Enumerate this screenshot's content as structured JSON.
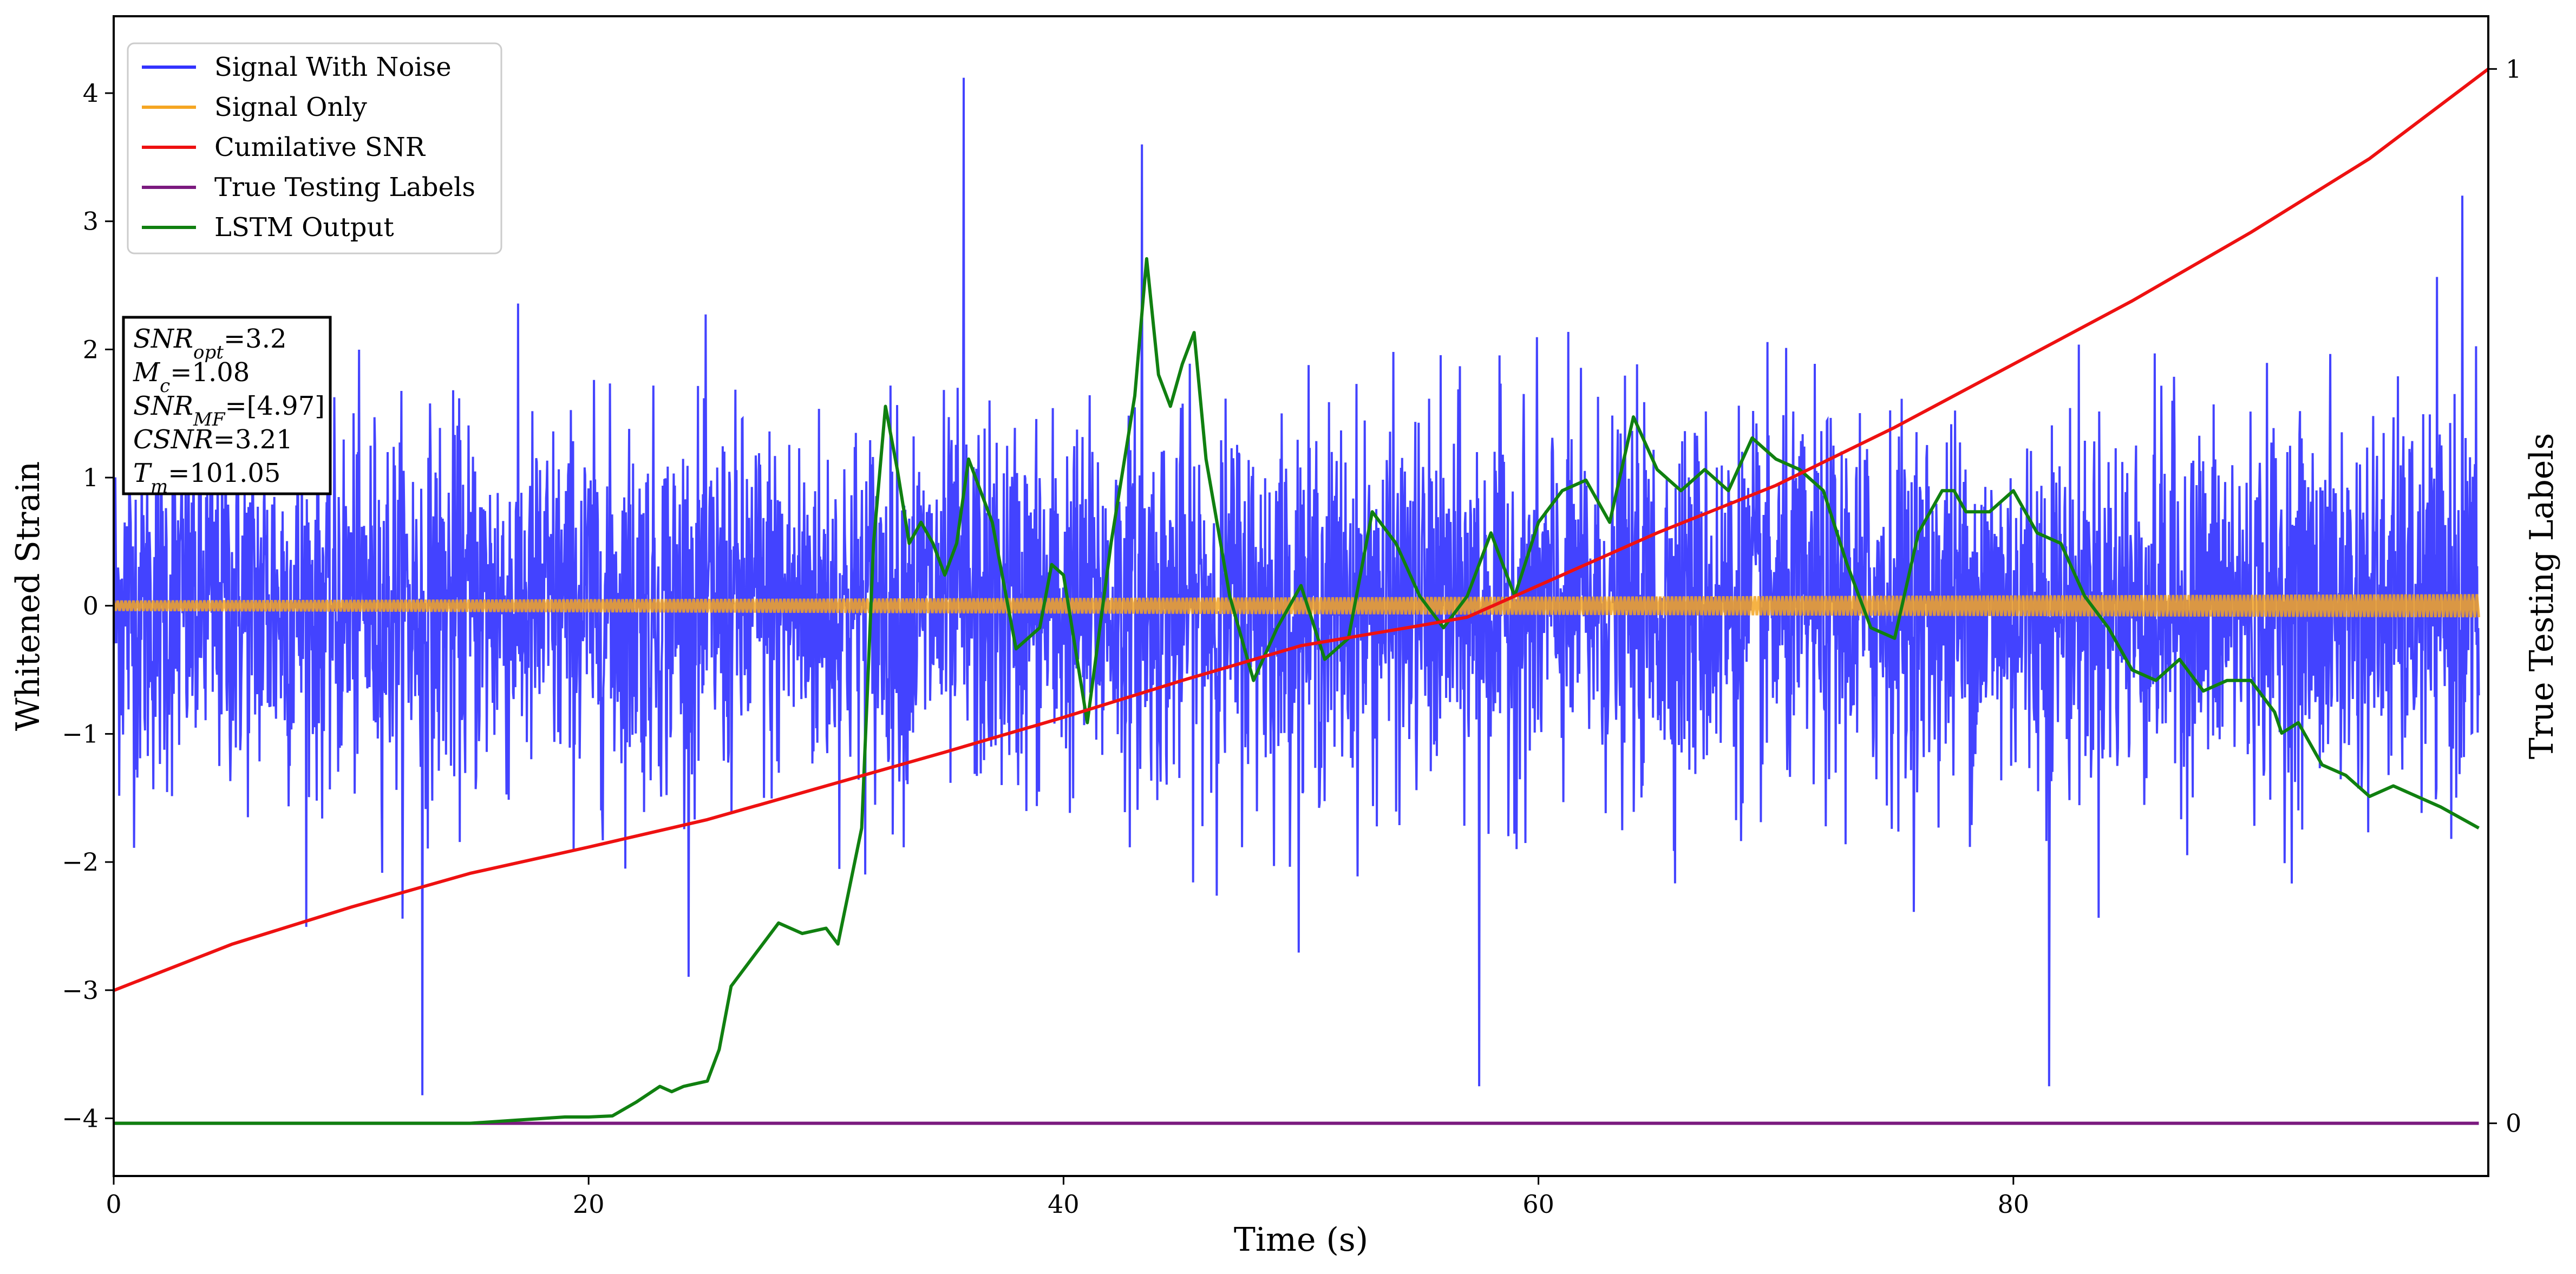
{
  "chart_data": {
    "type": "line",
    "xlabel": "Time (s)",
    "ylabel": "Whitened Strain",
    "ylabel_right": "True Testing Labels",
    "xlim": [
      0,
      100
    ],
    "ylim": [
      -4.45,
      4.6
    ],
    "ylim_right": [
      -0.05,
      1.05
    ],
    "x_ticks": [
      "0",
      "20",
      "40",
      "60",
      "80"
    ],
    "y_ticks": [
      "−4",
      "−3",
      "−2",
      "−1",
      "0",
      "1",
      "2",
      "3",
      "4"
    ],
    "y_ticks_right": [
      "0",
      "1"
    ],
    "legend_position": "top-left",
    "info_box": {
      "position": "upper-left",
      "lines": [
        "SNR_opt=3.2",
        "M_c=1.08",
        "SNR_MF=[4.97]",
        "CSNR=3.21",
        "T_m=101.05"
      ]
    },
    "series": [
      {
        "name": "Signal With Noise",
        "color": "#3333ff",
        "axis": "left",
        "style": "noise",
        "description": "dense white-noise trace, mostly within -1.5..1.5, spikes up to 4.1 (around t=35.8) and down to -3.8 (t=13)",
        "peaks": [
          [
            13,
            -3.82
          ],
          [
            35.8,
            4.12
          ],
          [
            43.3,
            3.6
          ],
          [
            57.5,
            -3.75
          ],
          [
            81.5,
            -3.75
          ],
          [
            98.9,
            3.2
          ]
        ]
      },
      {
        "name": "Signal Only",
        "color": "#f5a623",
        "axis": "left",
        "style": "band",
        "description": "thin oscillating chirp band centred at 0, half-width growing from ~0.04 to ~0.09"
      },
      {
        "name": "Cumilative SNR",
        "color": "#ee1111",
        "axis": "right",
        "x": [
          0,
          5,
          10,
          15,
          20,
          25,
          30,
          35,
          40,
          45,
          50,
          55,
          57,
          60,
          65,
          70,
          75,
          80,
          85,
          90,
          95,
          100
        ],
        "y": [
          0.126,
          0.17,
          0.205,
          0.237,
          0.262,
          0.288,
          0.32,
          0.352,
          0.385,
          0.42,
          0.453,
          0.472,
          0.48,
          0.51,
          0.56,
          0.605,
          0.66,
          0.72,
          0.78,
          0.845,
          0.915,
          1.0
        ]
      },
      {
        "name": "True Testing Labels",
        "color": "#7b1a7f",
        "axis": "right",
        "x": [
          0,
          99.6
        ],
        "y": [
          0,
          0
        ]
      },
      {
        "name": "LSTM Output",
        "color": "#108010",
        "axis": "right",
        "x": [
          0,
          15,
          17,
          19,
          20,
          21,
          22,
          23,
          23.5,
          24,
          25,
          25.5,
          26,
          27,
          28,
          29,
          30,
          30.5,
          31.5,
          32,
          32.5,
          33,
          33.5,
          34,
          34.5,
          35,
          35.5,
          36,
          37,
          38,
          39,
          39.5,
          40,
          41,
          42,
          43,
          43.5,
          44,
          44.5,
          45,
          45.5,
          46,
          47,
          48,
          49,
          50,
          51,
          52,
          53,
          54,
          55,
          56,
          57,
          58,
          59,
          60,
          61,
          62,
          63,
          64,
          65,
          66,
          67,
          68,
          69,
          70,
          71,
          72,
          73,
          74,
          75,
          76,
          77,
          77.5,
          78,
          79,
          80,
          81,
          82,
          83,
          84,
          85,
          86,
          87,
          88,
          89,
          90,
          91,
          91.3,
          92,
          93,
          94,
          95,
          96,
          97,
          98,
          99.6
        ],
        "y": [
          0,
          0,
          0.003,
          0.006,
          0.006,
          0.007,
          0.02,
          0.035,
          0.03,
          0.035,
          0.04,
          0.07,
          0.13,
          0.16,
          0.19,
          0.18,
          0.185,
          0.17,
          0.28,
          0.55,
          0.68,
          0.62,
          0.55,
          0.57,
          0.55,
          0.52,
          0.55,
          0.63,
          0.57,
          0.45,
          0.47,
          0.53,
          0.52,
          0.38,
          0.55,
          0.69,
          0.82,
          0.71,
          0.68,
          0.72,
          0.75,
          0.63,
          0.5,
          0.42,
          0.47,
          0.51,
          0.44,
          0.46,
          0.58,
          0.55,
          0.5,
          0.47,
          0.5,
          0.56,
          0.5,
          0.57,
          0.6,
          0.61,
          0.57,
          0.67,
          0.62,
          0.6,
          0.62,
          0.6,
          0.65,
          0.63,
          0.62,
          0.6,
          0.53,
          0.47,
          0.46,
          0.56,
          0.6,
          0.6,
          0.58,
          0.58,
          0.6,
          0.56,
          0.55,
          0.5,
          0.47,
          0.43,
          0.42,
          0.44,
          0.41,
          0.42,
          0.42,
          0.39,
          0.37,
          0.38,
          0.34,
          0.33,
          0.31,
          0.32,
          0.31,
          0.3,
          0.28
        ]
      }
    ]
  }
}
